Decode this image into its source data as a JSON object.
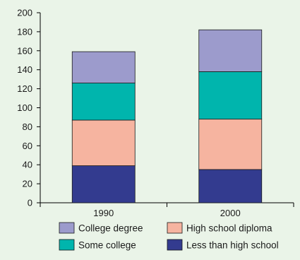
{
  "chart_data": {
    "type": "bar",
    "stacked": true,
    "title": "",
    "xlabel": "",
    "ylabel": "",
    "ylim": [
      0,
      200
    ],
    "yticks": [
      0,
      20,
      40,
      60,
      80,
      100,
      120,
      140,
      160,
      180,
      200
    ],
    "grid": false,
    "legend_position": "bottom",
    "categories": [
      "1990",
      "2000"
    ],
    "series": [
      {
        "name": "Less than high school",
        "color": "#333b8f",
        "values": [
          39,
          35
        ]
      },
      {
        "name": "High school diploma",
        "color": "#f6b4a0",
        "values": [
          48,
          53
        ]
      },
      {
        "name": "Some college",
        "color": "#00b5ad",
        "values": [
          39,
          50
        ]
      },
      {
        "name": "College degree",
        "color": "#9c9bcc",
        "values": [
          33,
          44
        ]
      }
    ],
    "legend_order": [
      "College degree",
      "High school diploma",
      "Some college",
      "Less than high school"
    ]
  }
}
